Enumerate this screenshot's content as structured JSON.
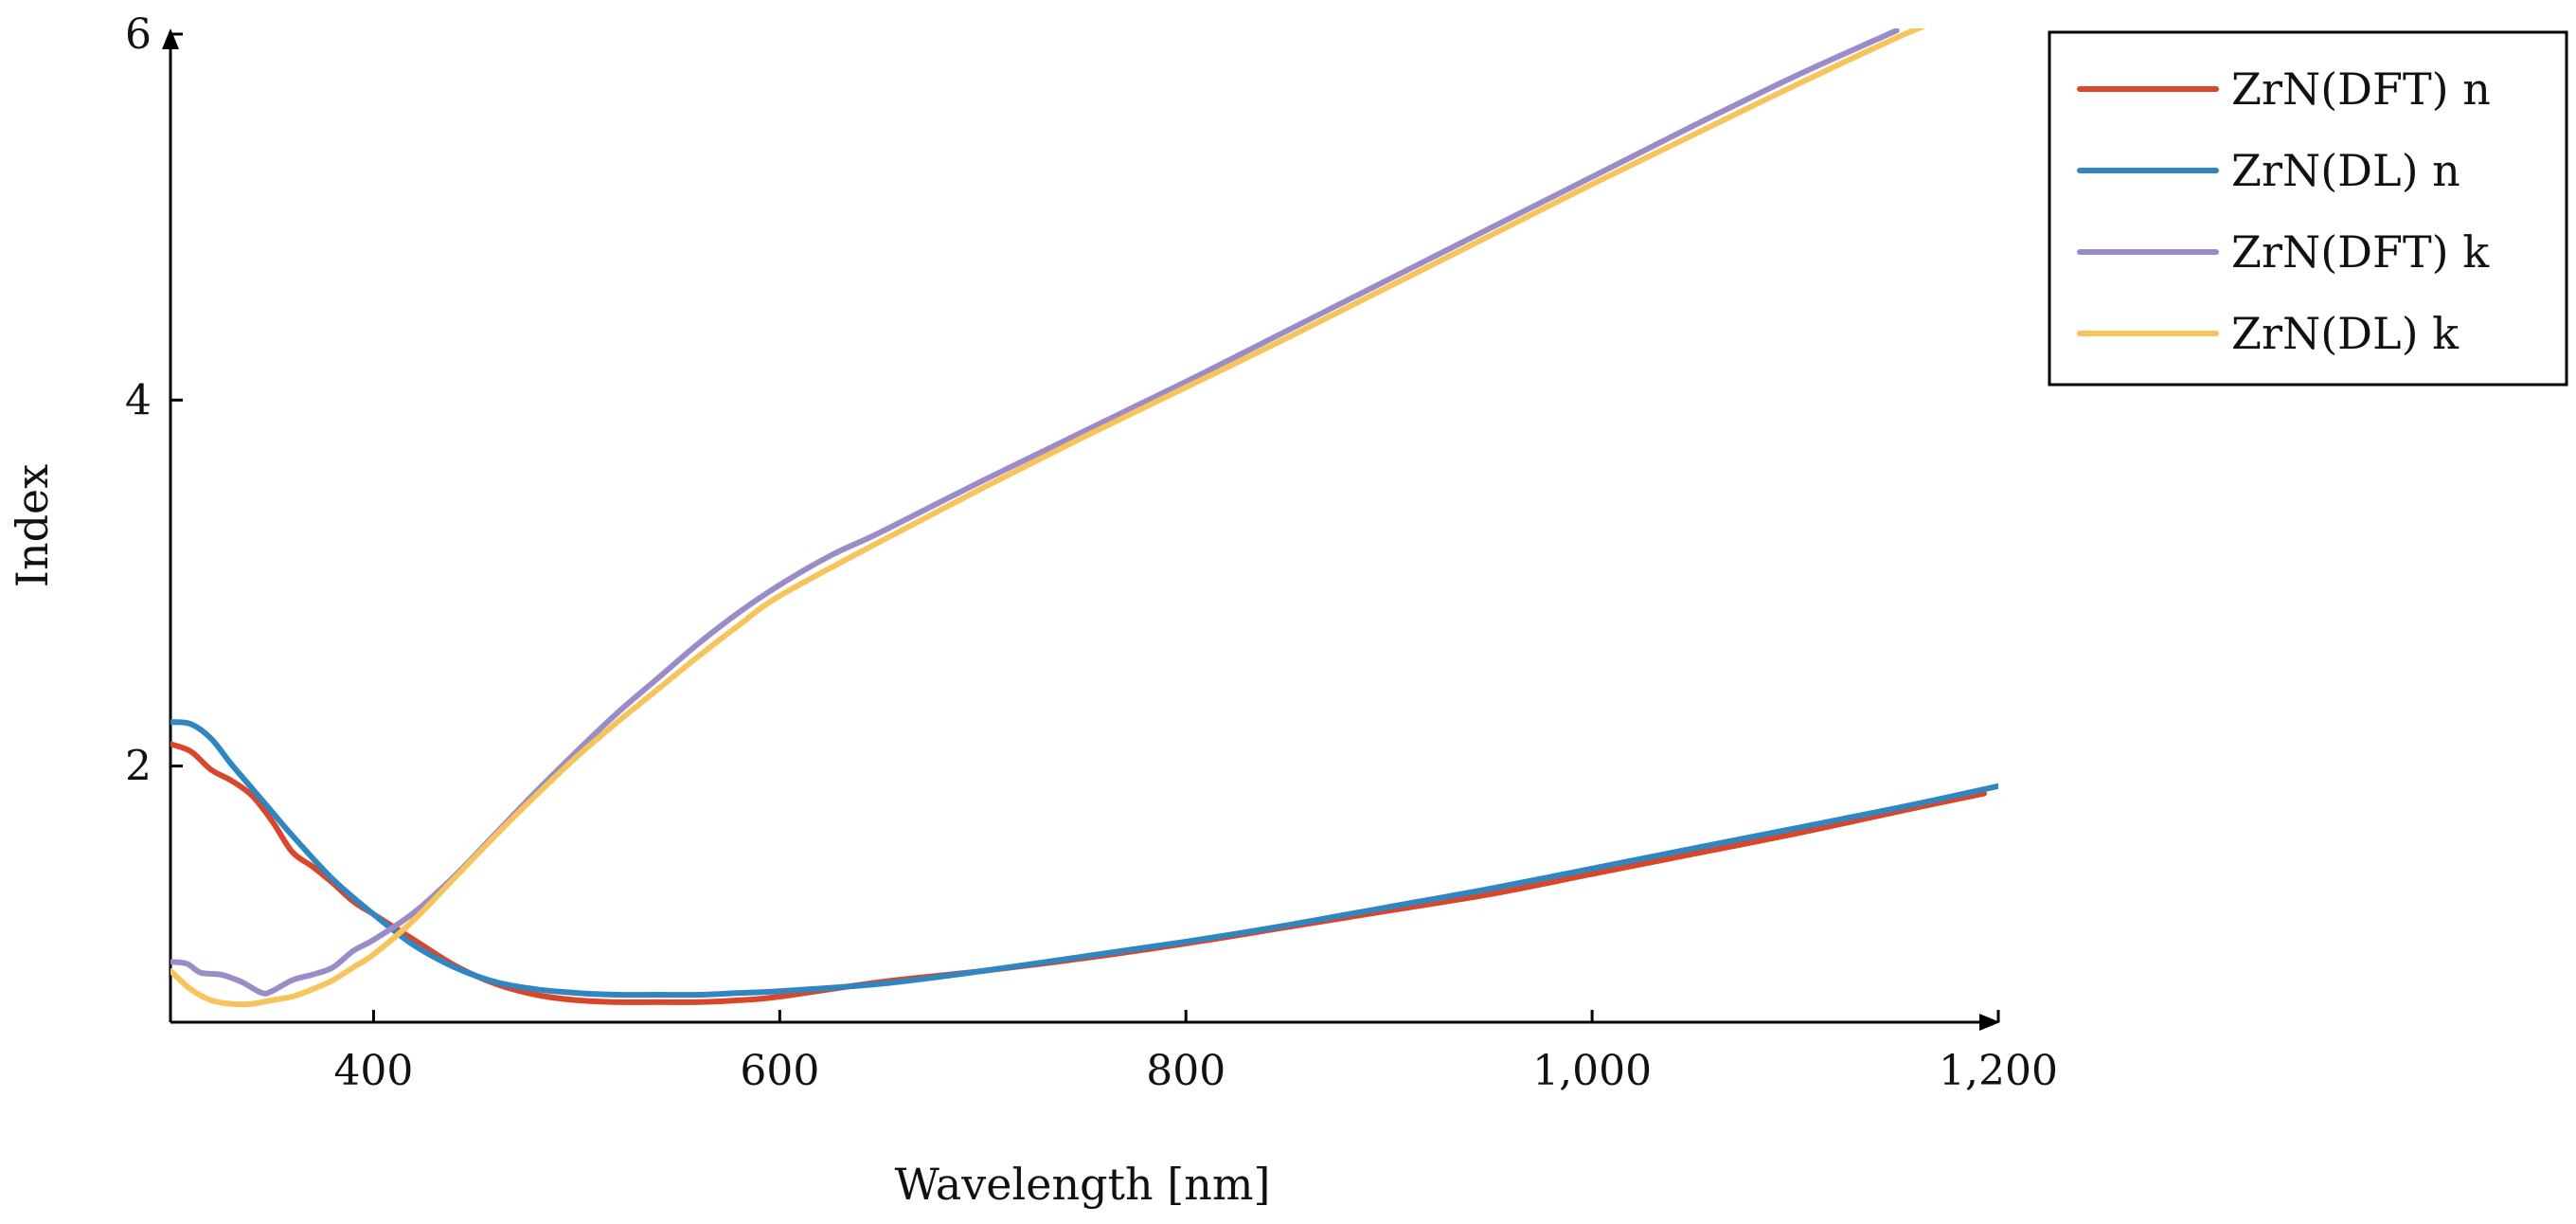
{
  "chart_data": {
    "type": "line",
    "title": "",
    "xlabel": "Wavelength [nm]",
    "ylabel": "Index",
    "xlim": [
      300,
      1200
    ],
    "ylim": [
      0.6,
      6
    ],
    "x_ticks": [
      400,
      600,
      800,
      1000,
      1200
    ],
    "x_tick_labels": [
      "400",
      "600",
      "800",
      "1,000",
      "1,200"
    ],
    "y_ticks": [
      2,
      4,
      6
    ],
    "y_tick_labels": [
      "2",
      "4",
      "6"
    ],
    "grid": false,
    "legend_position": "top-right",
    "series": [
      {
        "name": "ZrN(DFT) n",
        "color": "#D9472B",
        "x": [
          300,
          310,
          320,
          330,
          340,
          350,
          360,
          370,
          380,
          390,
          400,
          420,
          440,
          460,
          480,
          500,
          520,
          540,
          560,
          580,
          600,
          650,
          700,
          750,
          800,
          850,
          900,
          950,
          1000,
          1050,
          1100,
          1150,
          1193
        ],
        "y": [
          2.12,
          2.08,
          1.98,
          1.92,
          1.84,
          1.7,
          1.53,
          1.45,
          1.36,
          1.26,
          1.19,
          1.05,
          0.91,
          0.81,
          0.75,
          0.72,
          0.71,
          0.71,
          0.71,
          0.72,
          0.74,
          0.82,
          0.88,
          0.95,
          1.03,
          1.12,
          1.21,
          1.3,
          1.41,
          1.52,
          1.63,
          1.75,
          1.85
        ]
      },
      {
        "name": "ZrN(DL) n",
        "color": "#2F86C1",
        "x": [
          300,
          310,
          320,
          330,
          340,
          350,
          360,
          380,
          400,
          420,
          440,
          460,
          480,
          500,
          520,
          540,
          560,
          580,
          600,
          650,
          700,
          750,
          800,
          850,
          900,
          950,
          1000,
          1050,
          1100,
          1150,
          1200
        ],
        "y": [
          2.24,
          2.23,
          2.15,
          2.01,
          1.88,
          1.75,
          1.62,
          1.38,
          1.19,
          1.02,
          0.9,
          0.82,
          0.78,
          0.76,
          0.75,
          0.75,
          0.75,
          0.76,
          0.77,
          0.81,
          0.88,
          0.96,
          1.04,
          1.13,
          1.23,
          1.33,
          1.44,
          1.55,
          1.66,
          1.77,
          1.89
        ]
      },
      {
        "name": "ZrN(DFT) k",
        "color": "#9B8CC8",
        "x": [
          300,
          308,
          315,
          325,
          335,
          345,
          350,
          360,
          370,
          380,
          390,
          400,
          420,
          440,
          460,
          480,
          500,
          520,
          540,
          560,
          580,
          600,
          625,
          650,
          700,
          750,
          800,
          850,
          900,
          950,
          1000,
          1050,
          1100,
          1150
        ],
        "y": [
          0.93,
          0.92,
          0.87,
          0.86,
          0.82,
          0.76,
          0.77,
          0.83,
          0.86,
          0.9,
          0.99,
          1.05,
          1.2,
          1.4,
          1.63,
          1.86,
          2.08,
          2.29,
          2.48,
          2.67,
          2.84,
          2.99,
          3.15,
          3.28,
          3.56,
          3.83,
          4.1,
          4.38,
          4.66,
          4.94,
          5.22,
          5.5,
          5.77,
          6.02
        ]
      },
      {
        "name": "ZrN(DL) k",
        "color": "#F7C45C",
        "x": [
          300,
          310,
          320,
          330,
          340,
          350,
          360,
          370,
          380,
          390,
          400,
          420,
          440,
          460,
          480,
          500,
          520,
          540,
          560,
          580,
          600,
          650,
          700,
          750,
          800,
          850,
          900,
          950,
          1000,
          1050,
          1100,
          1150,
          1165
        ],
        "y": [
          0.88,
          0.78,
          0.72,
          0.7,
          0.7,
          0.72,
          0.74,
          0.78,
          0.83,
          0.9,
          0.97,
          1.16,
          1.39,
          1.62,
          1.84,
          2.05,
          2.24,
          2.42,
          2.6,
          2.77,
          2.93,
          3.23,
          3.52,
          3.8,
          4.07,
          4.34,
          4.62,
          4.9,
          5.18,
          5.45,
          5.72,
          5.98,
          6.05
        ]
      }
    ]
  }
}
